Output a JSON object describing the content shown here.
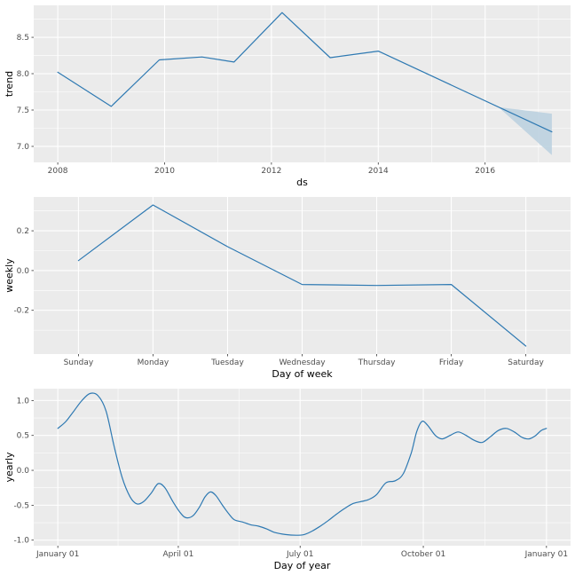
{
  "style": {
    "background": "#FFFFFF",
    "panel_bg": "#EBEBEB",
    "grid_color": "#FFFFFF",
    "line_color": "#2E79B2",
    "ribbon_color": "#BCD2E0",
    "tick_mark_color": "#333333",
    "tick_label_color": "#4D4D4D",
    "axis_title_color": "#000000"
  },
  "chart_data": [
    {
      "id": "trend",
      "type": "line",
      "xlabel": "ds",
      "ylabel": "trend",
      "x_type": "linear",
      "x": [
        2008.0,
        2009.0,
        2009.9,
        2010.7,
        2011.3,
        2012.2,
        2013.1,
        2014.0,
        2017.25
      ],
      "y": [
        8.02,
        7.55,
        8.19,
        8.23,
        8.16,
        8.84,
        8.22,
        8.31,
        7.2
      ],
      "xlim": [
        2007.55,
        2017.6
      ],
      "ylim": [
        6.78,
        8.94
      ],
      "xticks": {
        "values": [
          2008,
          2010,
          2012,
          2014,
          2016
        ],
        "labels": [
          "2008",
          "2010",
          "2012",
          "2014",
          "2016"
        ]
      },
      "yticks": {
        "values": [
          7.0,
          7.5,
          8.0,
          8.5
        ],
        "labels": [
          "7.0",
          "7.5",
          "8.0",
          "8.5"
        ]
      },
      "x_minor": [
        2009,
        2011,
        2013,
        2015,
        2017
      ],
      "y_minor": [
        7.25,
        7.75,
        8.25,
        8.75
      ],
      "ribbon": {
        "x": [
          2016.25,
          2017.25
        ],
        "upper": [
          7.54,
          7.45
        ],
        "lower": [
          7.54,
          6.88
        ]
      },
      "smooth": false
    },
    {
      "id": "weekly",
      "type": "line",
      "xlabel": "Day of week",
      "ylabel": "weekly",
      "x_type": "category",
      "categories": [
        "Sunday",
        "Monday",
        "Tuesday",
        "Wednesday",
        "Thursday",
        "Friday",
        "Saturday"
      ],
      "values": [
        0.05,
        0.33,
        0.12,
        -0.07,
        -0.075,
        -0.07,
        -0.38
      ],
      "ylim": [
        -0.42,
        0.37
      ],
      "yticks": {
        "values": [
          -0.2,
          0.0,
          0.2
        ],
        "labels": [
          "-0.2",
          "0.0",
          "0.2"
        ]
      },
      "y_minor": [
        -0.3,
        -0.1,
        0.1,
        0.3
      ],
      "smooth": false
    },
    {
      "id": "yearly",
      "type": "line",
      "xlabel": "Day of year",
      "ylabel": "yearly",
      "x_type": "linear",
      "x": [
        0,
        6,
        12,
        18,
        24,
        30,
        36,
        42,
        48,
        54,
        59,
        64,
        70,
        75,
        80,
        86,
        92,
        96,
        101,
        106,
        110,
        114,
        118,
        123,
        128,
        132,
        138,
        144,
        150,
        156,
        162,
        170,
        178,
        184,
        190,
        196,
        202,
        208,
        214,
        220,
        226,
        232,
        238,
        245,
        252,
        258,
        264,
        268,
        272,
        276,
        282,
        287,
        293,
        299,
        305,
        311,
        317,
        323,
        329,
        335,
        341,
        347,
        352,
        357,
        361,
        365
      ],
      "y": [
        0.6,
        0.7,
        0.85,
        1.0,
        1.1,
        1.07,
        0.85,
        0.35,
        -0.1,
        -0.38,
        -0.48,
        -0.45,
        -0.32,
        -0.19,
        -0.25,
        -0.45,
        -0.62,
        -0.68,
        -0.65,
        -0.52,
        -0.38,
        -0.31,
        -0.36,
        -0.5,
        -0.63,
        -0.71,
        -0.74,
        -0.78,
        -0.8,
        -0.84,
        -0.89,
        -0.92,
        -0.93,
        -0.92,
        -0.87,
        -0.8,
        -0.72,
        -0.63,
        -0.55,
        -0.48,
        -0.45,
        -0.42,
        -0.35,
        -0.18,
        -0.15,
        -0.05,
        0.25,
        0.55,
        0.7,
        0.65,
        0.5,
        0.45,
        0.5,
        0.55,
        0.5,
        0.43,
        0.4,
        0.48,
        0.57,
        0.6,
        0.55,
        0.47,
        0.45,
        0.5,
        0.57,
        0.6
      ],
      "xlim": [
        -18,
        383
      ],
      "ylim": [
        -1.08,
        1.17
      ],
      "xticks": {
        "values": [
          0,
          90,
          181,
          273,
          365
        ],
        "labels": [
          "January 01",
          "April 01",
          "July 01",
          "October 01",
          "January 01"
        ]
      },
      "yticks": {
        "values": [
          -1.0,
          -0.5,
          0.0,
          0.5,
          1.0
        ],
        "labels": [
          "-1.0",
          "-0.5",
          "0.0",
          "0.5",
          "1.0"
        ]
      },
      "x_minor": [
        45,
        135.5,
        227,
        319
      ],
      "y_minor": [
        -0.75,
        -0.25,
        0.25,
        0.75
      ],
      "smooth": true
    }
  ]
}
